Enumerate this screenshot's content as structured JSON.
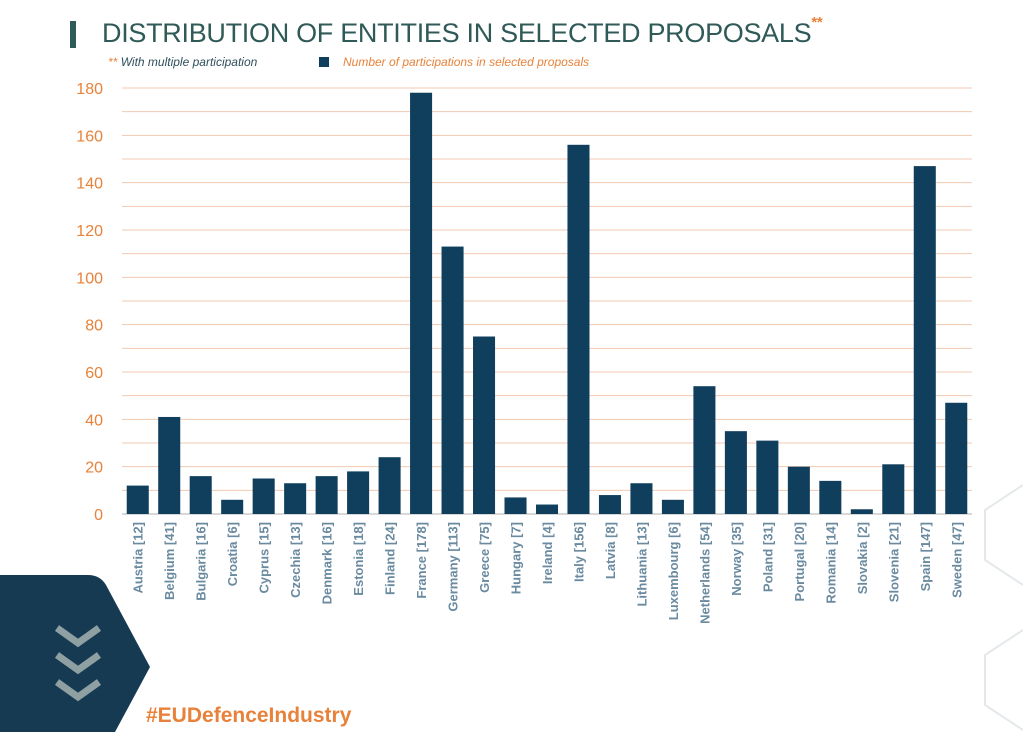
{
  "title": "DISTRIBUTION OF ENTITIES IN SELECTED PROPOSALS",
  "title_marker": "**",
  "note_marker": "**",
  "note": "With multiple participation",
  "hashtag": "#EUDefenceIndustry",
  "colors": {
    "bar": "#0f3f5c",
    "title": "#2f5a57",
    "accent": "#e8823a",
    "xlabel": "#6a8aa0",
    "grid": "#f0c9b0"
  },
  "chart_data": {
    "type": "bar",
    "title": "DISTRIBUTION OF ENTITIES IN SELECTED PROPOSALS",
    "categories": [
      "Austria [12]",
      "Belgium [41]",
      "Bulgaria [16]",
      "Croatia [6]",
      "Cyprus [15]",
      "Czechia [13]",
      "Denmark [16]",
      "Estonia [18]",
      "Finland [24]",
      "France [178]",
      "Germany [113]",
      "Greece [75]",
      "Hungary [7]",
      "Ireland [4]",
      "Italy [156]",
      "Latvia [8]",
      "Lithuania [13]",
      "Luxembourg [6]",
      "Netherlands [54]",
      "Norway [35]",
      "Poland [31]",
      "Portugal [20]",
      "Romania [14]",
      "Slovakia [2]",
      "Slovenia [21]",
      "Spain [147]",
      "Sweden [47]"
    ],
    "series": [
      {
        "name": "Number of participations in selected proposals",
        "values": [
          12,
          41,
          16,
          6,
          15,
          13,
          16,
          18,
          24,
          178,
          113,
          75,
          7,
          4,
          156,
          8,
          13,
          6,
          54,
          35,
          31,
          20,
          14,
          2,
          21,
          147,
          47
        ]
      }
    ],
    "yticks": [
      0,
      20,
      40,
      60,
      80,
      100,
      120,
      140,
      160,
      180
    ],
    "ylim": [
      0,
      180
    ],
    "grid": true,
    "legend": "top"
  }
}
